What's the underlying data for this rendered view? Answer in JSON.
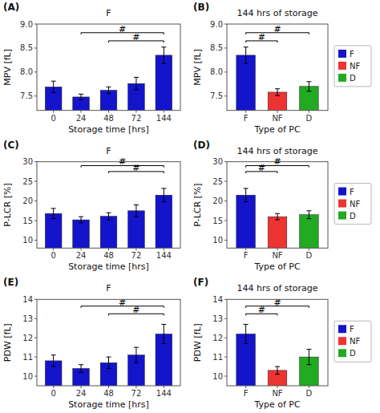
{
  "chart_data": [
    {
      "type": "bar",
      "panel_label": "(A)",
      "title": "F",
      "xlabel": "Storage time [hrs]",
      "ylabel": "MPV [fL]",
      "categories": [
        "0",
        "24",
        "48",
        "72",
        "144"
      ],
      "values": [
        7.69,
        7.48,
        7.62,
        7.76,
        8.35
      ],
      "errors": [
        0.12,
        0.06,
        0.07,
        0.13,
        0.17
      ],
      "color": "#1414cc",
      "ylim": [
        7.2,
        9.0
      ],
      "yticks": [
        7.5,
        {
          "value": 8.0,
          "label": "8.0"
        },
        8.5,
        {
          "value": 9.0,
          "label": "9.0"
        }
      ],
      "grid": false,
      "annotations": [
        {
          "label": "#",
          "x1": "24",
          "x2": "144",
          "y": 8.82
        },
        {
          "label": "#",
          "x1": "48",
          "x2": "144",
          "y": 8.65
        }
      ]
    },
    {
      "type": "bar",
      "panel_label": "(B)",
      "title": "144 hrs of storage",
      "xlabel": "Type of PC",
      "ylabel": "MPV [fL]",
      "categories": [
        "F",
        "NF",
        "D"
      ],
      "values": [
        8.35,
        7.58,
        7.7
      ],
      "errors": [
        0.17,
        0.07,
        0.1
      ],
      "colors": [
        "#1414cc",
        "#ee3333",
        "#22aa22"
      ],
      "ylim": [
        7.2,
        9.0
      ],
      "yticks": [
        7.5,
        {
          "value": 8.0,
          "label": "8.0"
        },
        8.5,
        {
          "value": 9.0,
          "label": "9.0"
        }
      ],
      "grid": false,
      "annotations": [
        {
          "label": "#",
          "x1": "F",
          "x2": "NF",
          "y": 8.65
        },
        {
          "label": "#",
          "x1": "F",
          "x2": "D",
          "y": 8.82
        }
      ],
      "legend": "right"
    },
    {
      "type": "bar",
      "panel_label": "(C)",
      "title": "F",
      "xlabel": "Storage time [hrs]",
      "ylabel": "P-LCR [%]",
      "categories": [
        "0",
        "24",
        "48",
        "72",
        "144"
      ],
      "values": [
        16.8,
        15.2,
        16.1,
        17.5,
        21.5
      ],
      "errors": [
        1.3,
        0.8,
        0.9,
        1.5,
        1.7
      ],
      "color": "#1414cc",
      "ylim": [
        8.0,
        30.0
      ],
      "yticks": [
        10,
        15,
        20,
        25,
        30
      ],
      "grid": false,
      "annotations": [
        {
          "label": "#",
          "x1": "24",
          "x2": "144",
          "y": 29.0
        },
        {
          "label": "#",
          "x1": "48",
          "x2": "144",
          "y": 27.5
        }
      ]
    },
    {
      "type": "bar",
      "panel_label": "(D)",
      "title": "144 hrs of storage",
      "xlabel": "Type of PC",
      "ylabel": "P-LCR [%]",
      "categories": [
        "F",
        "NF",
        "D"
      ],
      "values": [
        21.5,
        16.0,
        16.5
      ],
      "errors": [
        1.7,
        0.8,
        1.0
      ],
      "colors": [
        "#1414cc",
        "#ee3333",
        "#22aa22"
      ],
      "ylim": [
        8.0,
        30.0
      ],
      "yticks": [
        10,
        15,
        20,
        25,
        30
      ],
      "grid": false,
      "annotations": [
        {
          "label": "#",
          "x1": "F",
          "x2": "NF",
          "y": 27.5
        },
        {
          "label": "#",
          "x1": "F",
          "x2": "D",
          "y": 29.0
        }
      ],
      "legend": "right"
    },
    {
      "type": "bar",
      "panel_label": "(E)",
      "title": "F",
      "xlabel": "Storage time [hrs]",
      "ylabel": "PDW [fL]",
      "categories": [
        "0",
        "24",
        "48",
        "72",
        "144"
      ],
      "values": [
        10.8,
        10.4,
        10.7,
        11.1,
        12.2
      ],
      "errors": [
        0.3,
        0.2,
        0.3,
        0.4,
        0.5
      ],
      "color": "#1414cc",
      "ylim": [
        9.5,
        14.0
      ],
      "yticks": [
        10,
        11,
        12,
        13,
        14
      ],
      "grid": false,
      "annotations": [
        {
          "label": "#",
          "x1": "24",
          "x2": "144",
          "y": 13.65
        },
        {
          "label": "#",
          "x1": "48",
          "x2": "144",
          "y": 13.25
        }
      ]
    },
    {
      "type": "bar",
      "panel_label": "(F)",
      "title": "144 hrs of storage",
      "xlabel": "Type of PC",
      "ylabel": "PDW [fL]",
      "categories": [
        "F",
        "NF",
        "D"
      ],
      "values": [
        12.2,
        10.3,
        11.0
      ],
      "errors": [
        0.5,
        0.2,
        0.4
      ],
      "colors": [
        "#1414cc",
        "#ee3333",
        "#22aa22"
      ],
      "ylim": [
        9.5,
        14.0
      ],
      "yticks": [
        10,
        11,
        12,
        13,
        14
      ],
      "grid": false,
      "annotations": [
        {
          "label": "#",
          "x1": "F",
          "x2": "NF",
          "y": 13.25
        },
        {
          "label": "#",
          "x1": "F",
          "x2": "D",
          "y": 13.65
        }
      ],
      "legend": "right"
    }
  ]
}
